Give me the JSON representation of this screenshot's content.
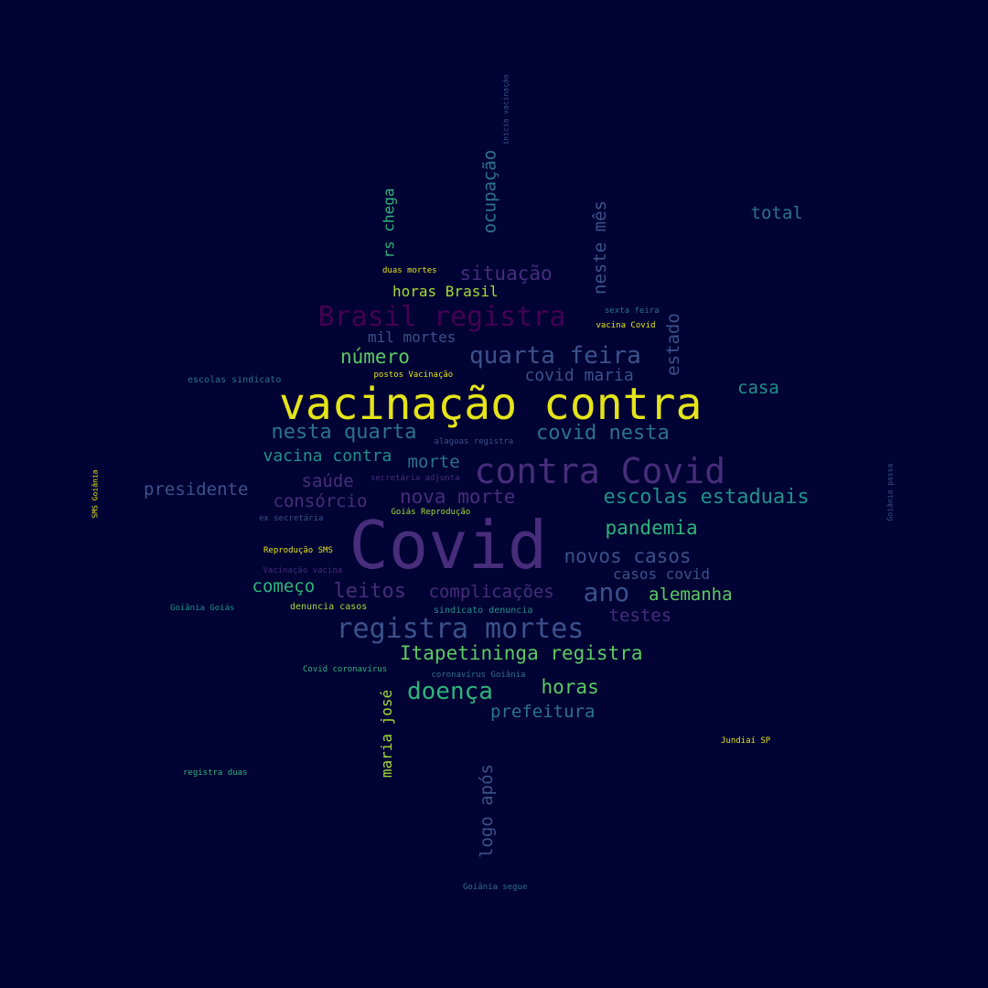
{
  "background": "#000333",
  "palette": {
    "yellow": "#e5e419",
    "lime": "#a5db36",
    "green": "#5ec962",
    "seagreen": "#2fb47c",
    "teal": "#21918c",
    "steel": "#2c728e",
    "blue": "#3b528b",
    "indigo": "#472d7b",
    "purple": "#440154"
  },
  "words": [
    {
      "text": "Covid",
      "color": "indigo"
    },
    {
      "text": "vacinação contra",
      "color": "yellow"
    },
    {
      "text": "contra Covid",
      "color": "indigo"
    },
    {
      "text": "Brasil registra",
      "color": "purple"
    },
    {
      "text": "registra mortes",
      "color": "blue"
    },
    {
      "text": "quarta feira",
      "color": "blue"
    },
    {
      "text": "ano",
      "color": "blue"
    },
    {
      "text": "covid nesta",
      "color": "steel"
    },
    {
      "text": "nesta quarta",
      "color": "steel"
    },
    {
      "text": "escolas estaduais",
      "color": "teal"
    },
    {
      "text": "doença",
      "color": "seagreen"
    },
    {
      "text": "Itapetininga registra",
      "color": "green"
    },
    {
      "text": "pandemia",
      "color": "seagreen"
    },
    {
      "text": "novos casos",
      "color": "blue"
    },
    {
      "text": "leitos",
      "color": "indigo"
    },
    {
      "text": "complicações",
      "color": "indigo"
    },
    {
      "text": "número",
      "color": "green"
    },
    {
      "text": "situação",
      "color": "indigo"
    },
    {
      "text": "horas",
      "color": "green"
    },
    {
      "text": "nova morte",
      "color": "indigo"
    },
    {
      "text": "presidente",
      "color": "blue"
    },
    {
      "text": "saúde",
      "color": "indigo"
    },
    {
      "text": "consórcio",
      "color": "indigo"
    },
    {
      "text": "alemanha",
      "color": "green"
    },
    {
      "text": "começo",
      "color": "seagreen"
    },
    {
      "text": "testes",
      "color": "indigo"
    },
    {
      "text": "prefeitura",
      "color": "steel"
    },
    {
      "text": "vacina contra",
      "color": "teal"
    },
    {
      "text": "morte",
      "color": "steel"
    },
    {
      "text": "covid maria",
      "color": "blue"
    },
    {
      "text": "casa",
      "color": "teal"
    },
    {
      "text": "total",
      "color": "steel"
    },
    {
      "text": "horas Brasil",
      "color": "lime"
    },
    {
      "text": "mil mortes",
      "color": "blue"
    },
    {
      "text": "casos covid",
      "color": "blue"
    },
    {
      "text": "ocupação",
      "color": "steel"
    },
    {
      "text": "neste mês",
      "color": "blue"
    },
    {
      "text": "estado",
      "color": "blue"
    },
    {
      "text": "rs chega",
      "color": "seagreen"
    },
    {
      "text": "maria josé",
      "color": "lime"
    },
    {
      "text": "logo após",
      "color": "blue"
    },
    {
      "text": "duas mortes",
      "color": "yellow"
    },
    {
      "text": "postos Vacinação",
      "color": "yellow"
    },
    {
      "text": "escolas sindicato",
      "color": "steel"
    },
    {
      "text": "sexta feira",
      "color": "steel"
    },
    {
      "text": "vacina Covid",
      "color": "yellow"
    },
    {
      "text": "alagoas registra",
      "color": "blue"
    },
    {
      "text": "secretária adjunta",
      "color": "indigo"
    },
    {
      "text": "ex secretária",
      "color": "blue"
    },
    {
      "text": "Goiás Reprodução",
      "color": "lime"
    },
    {
      "text": "Reprodução SMS",
      "color": "yellow"
    },
    {
      "text": "Vacinação vacina",
      "color": "indigo"
    },
    {
      "text": "Goiânia Goiás",
      "color": "teal"
    },
    {
      "text": "denuncia casos",
      "color": "lime"
    },
    {
      "text": "sindicato denuncia",
      "color": "teal"
    },
    {
      "text": "Covid coronavírus",
      "color": "seagreen"
    },
    {
      "text": "coronavírus Goiânia",
      "color": "steel"
    },
    {
      "text": "Jundiaí SP",
      "color": "yellow"
    },
    {
      "text": "registra duas",
      "color": "seagreen"
    },
    {
      "text": "Goiânia segue",
      "color": "steel"
    },
    {
      "text": "inicia vacinação",
      "color": "blue"
    },
    {
      "text": "SMS Goiânia",
      "color": "yellow"
    },
    {
      "text": "Goiânia passa",
      "color": "blue"
    }
  ]
}
